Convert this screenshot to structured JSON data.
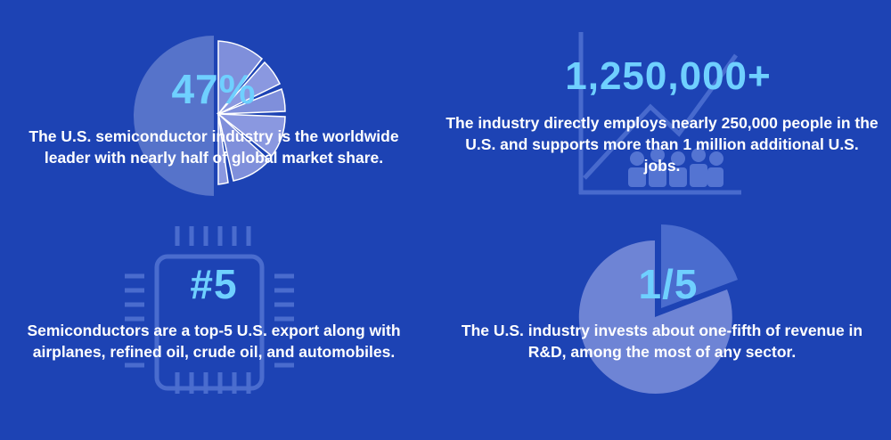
{
  "stats": [
    {
      "value": "47%",
      "description": "The U.S. semiconductor industry is the worldwide leader with nearly half of global market share.",
      "icon": "pie-chart-icon"
    },
    {
      "value": "1,250,000+",
      "description": "The industry directly employs nearly 250,000 people in the U.S. and supports more than 1 million additional U.S. jobs.",
      "icon": "growth-chart-people-icon"
    },
    {
      "value": "#5",
      "description": "Semiconductors are a top-5 U.S. export along with airplanes, refined oil, crude oil, and automobiles.",
      "icon": "microchip-icon"
    },
    {
      "value": "1/5",
      "description": "The U.S. industry invests about one-fifth of revenue in R&D, among the most of any sector.",
      "icon": "pie-one-fifth-icon"
    }
  ],
  "colors": {
    "background": "#1d43b4",
    "highlight": "#6fd0ff",
    "text": "#ffffff"
  }
}
